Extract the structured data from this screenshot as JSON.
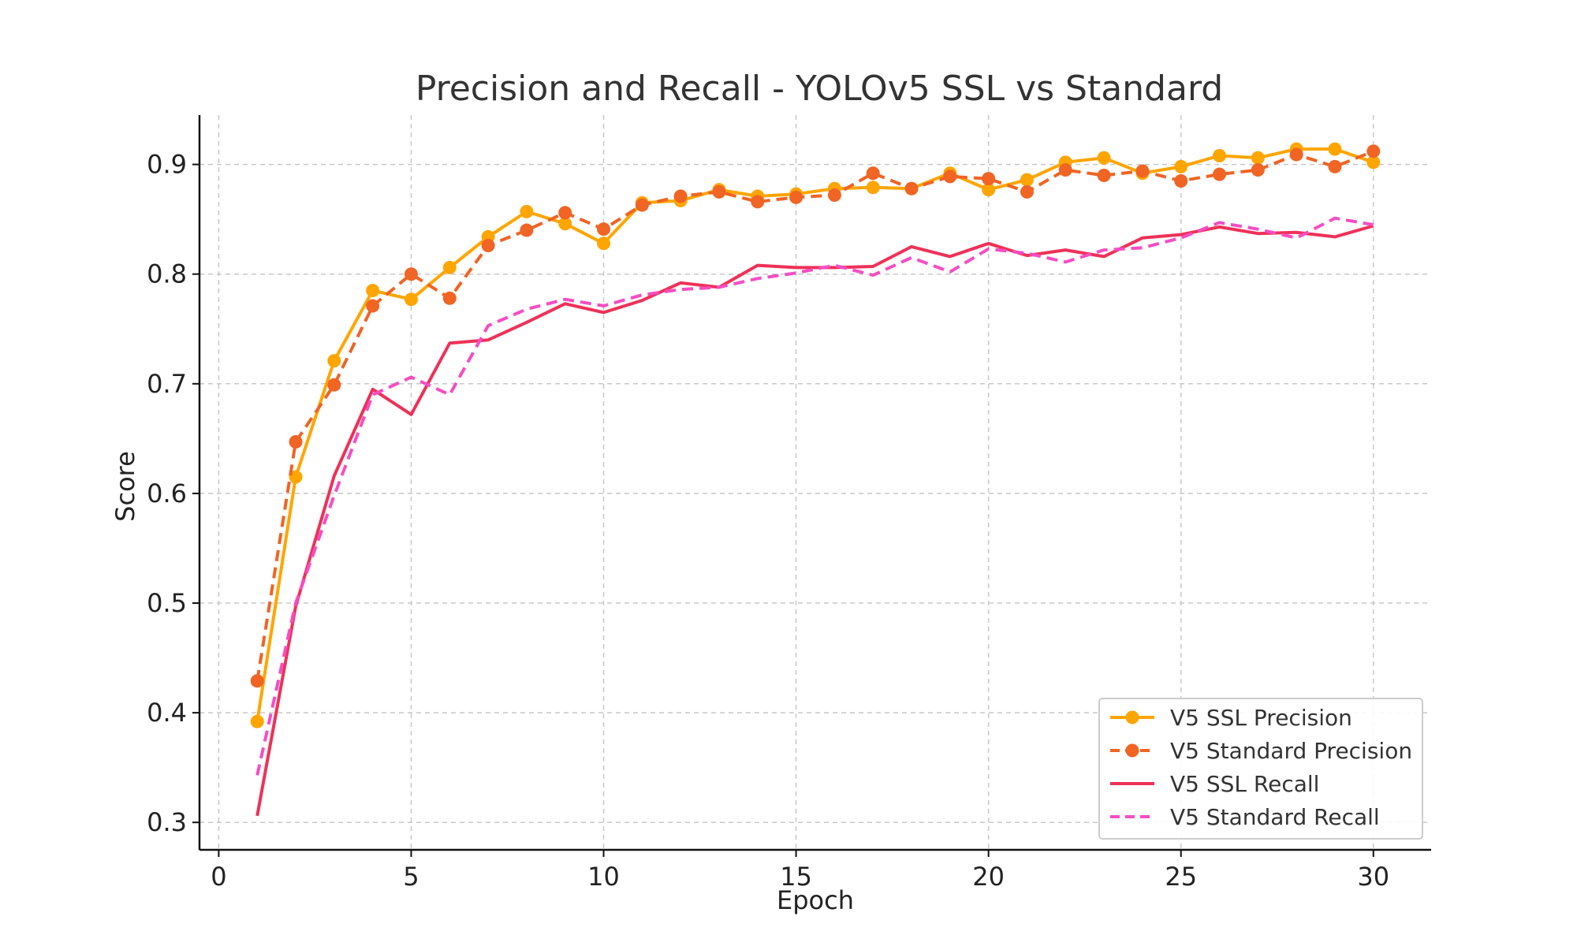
{
  "chart_data": {
    "type": "line",
    "title": "Precision and Recall - YOLOv5 SSL vs Standard",
    "xlabel": "Epoch",
    "ylabel": "Score",
    "xlim": [
      -0.5,
      31.5
    ],
    "ylim": [
      0.275,
      0.945
    ],
    "xticks": [
      0,
      5,
      10,
      15,
      20,
      25,
      30
    ],
    "yticks": [
      0.3,
      0.4,
      0.5,
      0.6,
      0.7,
      0.8,
      0.9
    ],
    "xtick_labels": [
      "0",
      "5",
      "10",
      "15",
      "20",
      "25",
      "30"
    ],
    "ytick_labels": [
      "0.3",
      "0.4",
      "0.5",
      "0.6",
      "0.7",
      "0.8",
      "0.9"
    ],
    "grid": true,
    "legend_position": "lower-right",
    "x": [
      1,
      2,
      3,
      4,
      5,
      6,
      7,
      8,
      9,
      10,
      11,
      12,
      13,
      14,
      15,
      16,
      17,
      18,
      19,
      20,
      21,
      22,
      23,
      24,
      25,
      26,
      27,
      28,
      29,
      30
    ],
    "series": [
      {
        "name": "V5 SSL Precision",
        "color": "#FFA500",
        "style": "solid",
        "marker": "circle",
        "values": [
          0.392,
          0.615,
          0.721,
          0.785,
          0.777,
          0.806,
          0.834,
          0.857,
          0.846,
          0.828,
          0.865,
          0.867,
          0.877,
          0.871,
          0.873,
          0.878,
          0.879,
          0.878,
          0.892,
          0.877,
          0.886,
          0.902,
          0.906,
          0.892,
          0.898,
          0.908,
          0.906,
          0.914,
          0.914,
          0.902
        ]
      },
      {
        "name": "V5 Standard Precision",
        "color": "#F06424",
        "style": "dashed",
        "marker": "circle",
        "values": [
          0.429,
          0.647,
          0.699,
          0.771,
          0.8,
          0.778,
          0.826,
          0.84,
          0.856,
          0.841,
          0.863,
          0.871,
          0.875,
          0.866,
          0.87,
          0.872,
          0.892,
          0.878,
          0.889,
          0.887,
          0.875,
          0.895,
          0.89,
          0.894,
          0.885,
          0.891,
          0.895,
          0.909,
          0.898,
          0.912
        ]
      },
      {
        "name": "V5 SSL Recall",
        "color": "#EE3158",
        "style": "solid",
        "marker": "none",
        "values": [
          0.306,
          0.497,
          0.616,
          0.695,
          0.672,
          0.737,
          0.74,
          0.756,
          0.773,
          0.765,
          0.776,
          0.792,
          0.788,
          0.808,
          0.806,
          0.806,
          0.807,
          0.825,
          0.816,
          0.828,
          0.817,
          0.822,
          0.816,
          0.833,
          0.836,
          0.843,
          0.837,
          0.838,
          0.834,
          0.844
        ]
      },
      {
        "name": "V5 Standard Recall",
        "color": "#F64DC4",
        "style": "dashed",
        "marker": "none",
        "values": [
          0.343,
          0.5,
          0.598,
          0.69,
          0.706,
          0.69,
          0.753,
          0.768,
          0.777,
          0.771,
          0.781,
          0.786,
          0.788,
          0.796,
          0.801,
          0.808,
          0.799,
          0.815,
          0.802,
          0.823,
          0.819,
          0.811,
          0.822,
          0.824,
          0.833,
          0.847,
          0.841,
          0.833,
          0.851,
          0.845
        ]
      }
    ]
  }
}
